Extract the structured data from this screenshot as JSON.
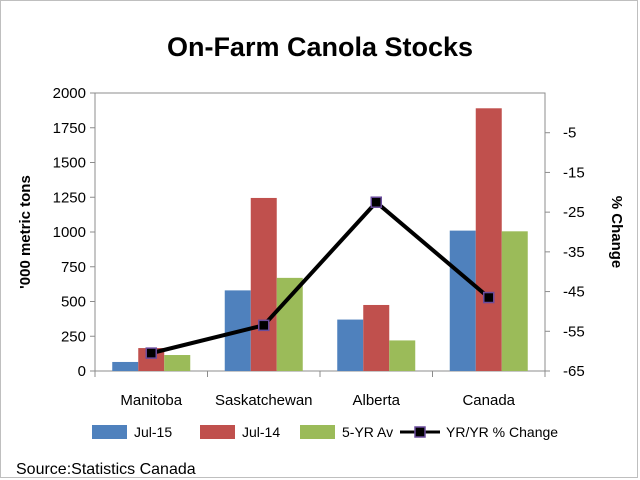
{
  "chart_data": {
    "type": "bar",
    "title": "On-Farm Canola Stocks",
    "categories": [
      "Manitoba",
      "Saskatchewan",
      "Alberta",
      "Canada"
    ],
    "series": [
      {
        "name": "Jul-15",
        "values": [
          65,
          580,
          370,
          1010
        ],
        "color": "#4F81BD"
      },
      {
        "name": "Jul-14",
        "values": [
          165,
          1245,
          475,
          1890
        ],
        "color": "#C0504D"
      },
      {
        "name": "5-YR Av",
        "values": [
          115,
          670,
          220,
          1005
        ],
        "color": "#9BBB59"
      }
    ],
    "line_series": {
      "name": "YR/YR % Change",
      "values": [
        -60.5,
        -53.5,
        -22.5,
        -46.5
      ],
      "color": "#000000",
      "axis": "right"
    },
    "ylabel": "'000 metric tons",
    "ylim": [
      0,
      2000
    ],
    "yticks": [
      "0",
      "250",
      "500",
      "750",
      "1000",
      "1250",
      "1500",
      "1750",
      "2000"
    ],
    "y2label": "% Change",
    "y2lim": [
      -65,
      5
    ],
    "y2ticks": [
      "-65",
      "-55",
      "-45",
      "-35",
      "-25",
      "-15",
      "-5"
    ],
    "legend": "bottom",
    "grid": false
  },
  "source": "Source:Statistics Canada"
}
